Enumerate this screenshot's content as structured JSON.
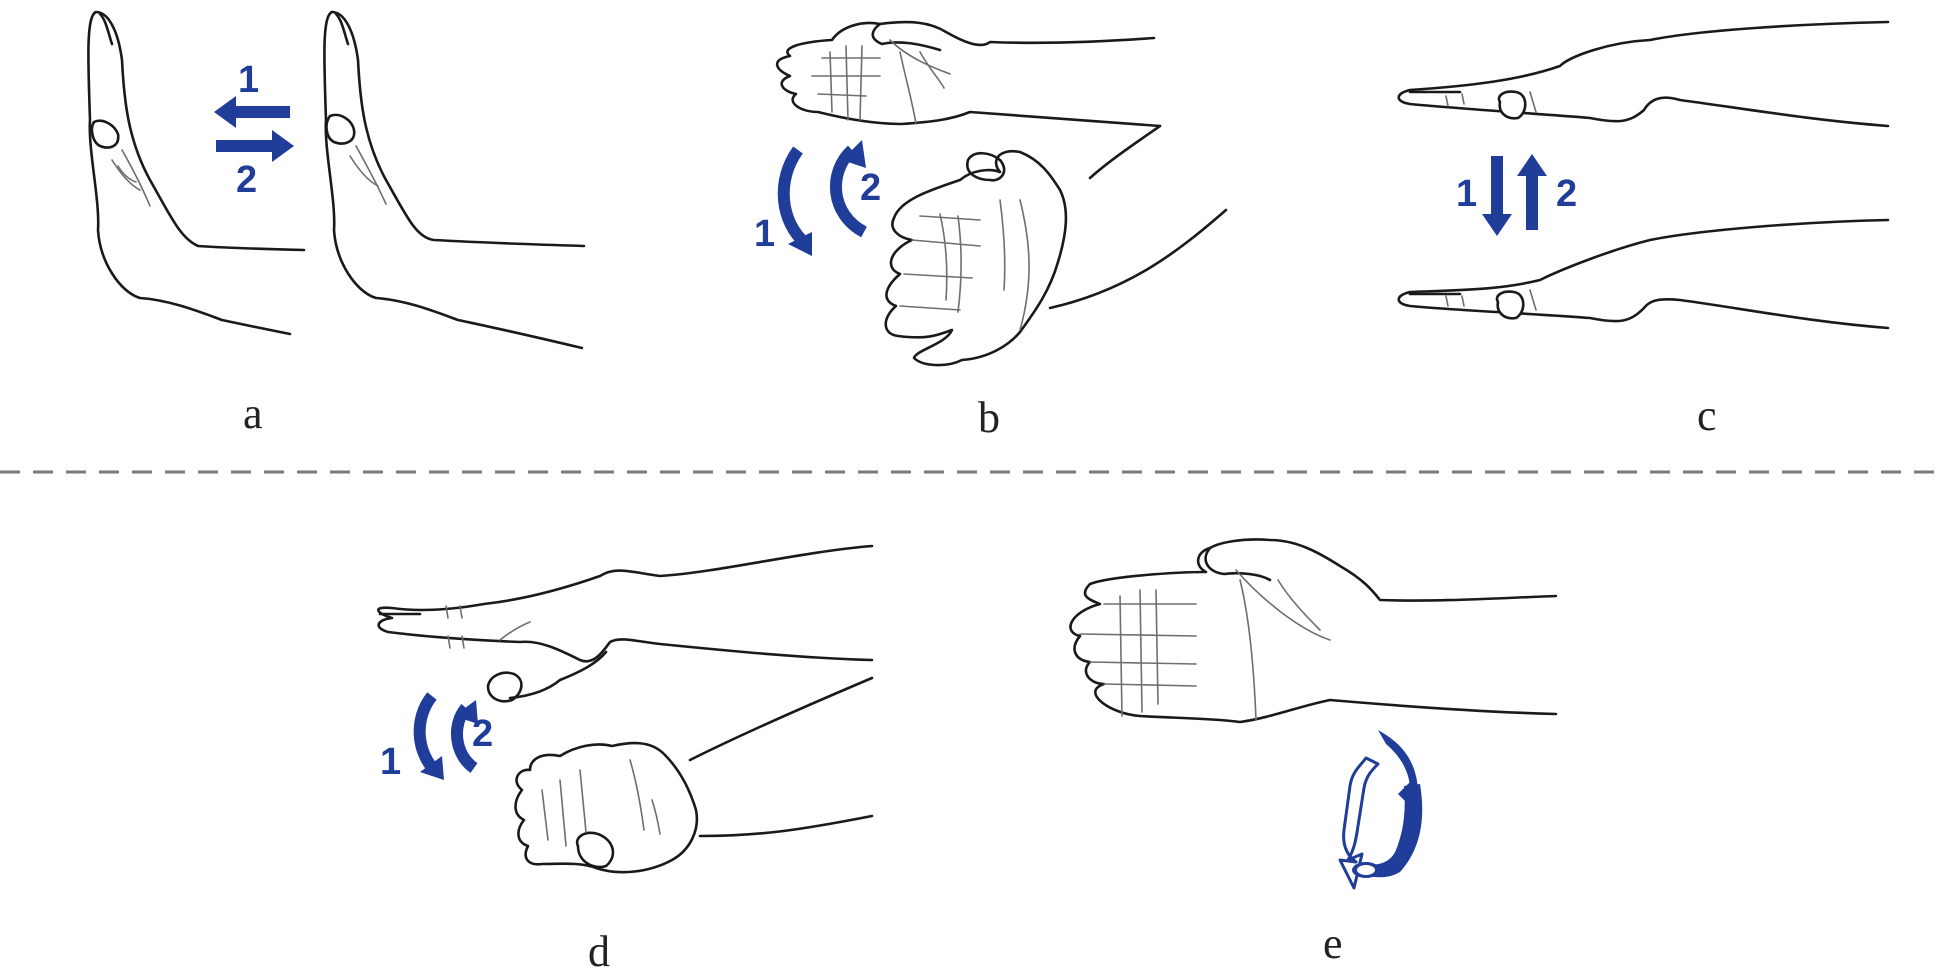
{
  "colors": {
    "accent": "#1f3d99",
    "line": "#1a1a1a",
    "divider": "#7a7a7a"
  },
  "panels": [
    {
      "id": "a",
      "label": "a",
      "step_first": "1",
      "step_second": "2",
      "arrow_style": "horizontal-opposed"
    },
    {
      "id": "b",
      "label": "b",
      "step_first": "1",
      "step_second": "2",
      "arrow_style": "curved-rotation"
    },
    {
      "id": "c",
      "label": "c",
      "step_first": "1",
      "step_second": "2",
      "arrow_style": "vertical-opposed"
    },
    {
      "id": "d",
      "label": "d",
      "step_first": "1",
      "step_second": "2",
      "arrow_style": "curved-rotation"
    },
    {
      "id": "e",
      "label": "e",
      "arrow_style": "circular-rotation"
    }
  ],
  "icons": {
    "arrow_left": "arrow-left-icon",
    "arrow_right": "arrow-right-icon",
    "arrow_up": "arrow-up-icon",
    "arrow_down": "arrow-down-icon",
    "arc_arrow": "curved-arrow-icon",
    "rotation": "rotation-arrow-icon"
  }
}
